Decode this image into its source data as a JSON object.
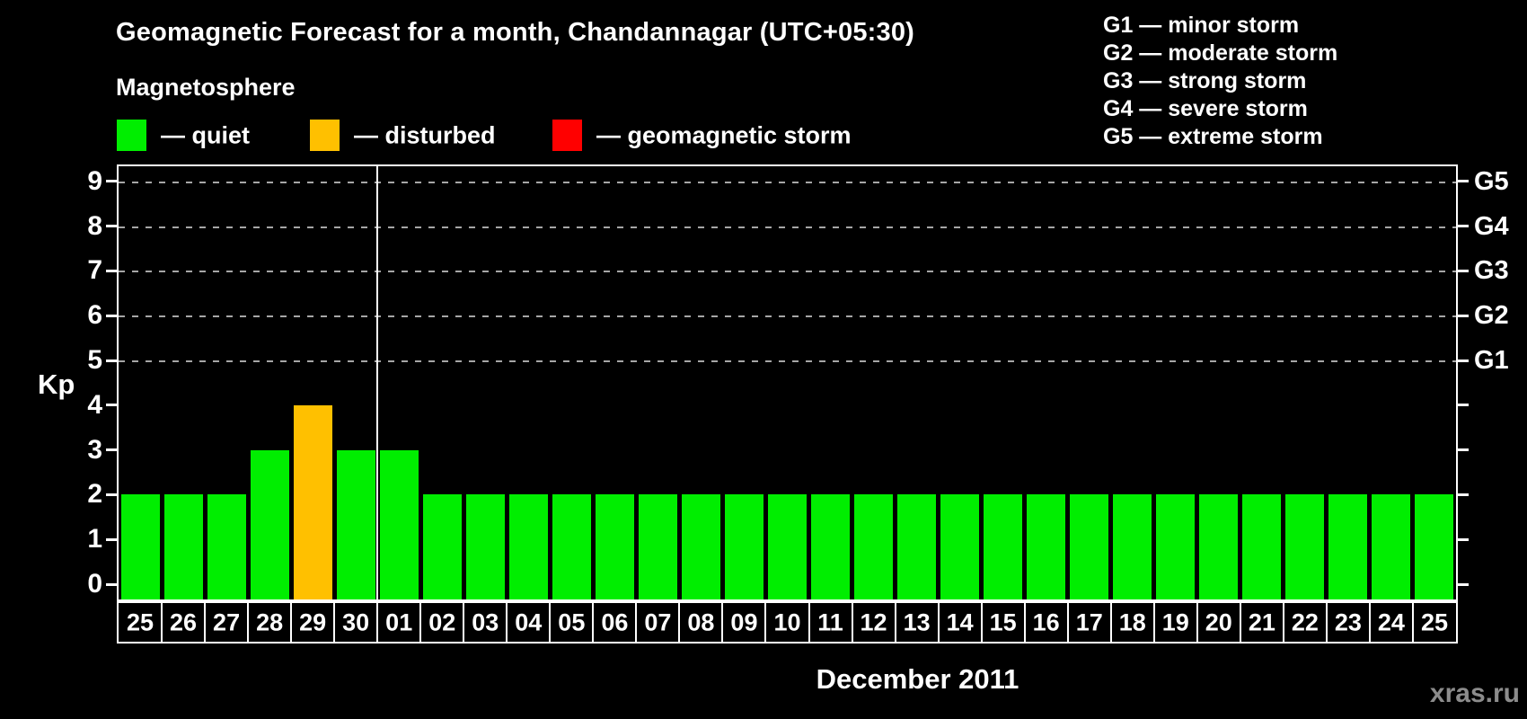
{
  "header": {
    "title": "Geomagnetic Forecast for a month, Chandannagar (UTC+05:30)",
    "subtitle": "Magnetosphere"
  },
  "legend": {
    "items": [
      {
        "key": "quiet",
        "label": "— quiet",
        "color": "#00ee00"
      },
      {
        "key": "disturbed",
        "label": "— disturbed",
        "color": "#ffc000"
      },
      {
        "key": "storm",
        "label": "— geomagnetic storm",
        "color": "#ff0000"
      }
    ]
  },
  "storm_scale_legend": {
    "lines": [
      "G1 — minor storm",
      "G2 — moderate storm",
      "G3 — strong storm",
      "G4 — severe storm",
      "G5 — extreme storm"
    ]
  },
  "watermark": "xras.ru",
  "chart_data": {
    "type": "bar",
    "title": "Geomagnetic Forecast for a month, Chandannagar (UTC+05:30)",
    "ylabel": "Kp",
    "xlabel": "December 2011",
    "ylim": [
      0,
      9
    ],
    "yticks": [
      0,
      1,
      2,
      3,
      4,
      5,
      6,
      7,
      8,
      9
    ],
    "gridlines_at": [
      5,
      6,
      7,
      8,
      9
    ],
    "grid_style": "dashed horizontal",
    "legend_position": "top-left",
    "right_axis_labels": [
      {
        "value": 5,
        "label": "G1"
      },
      {
        "value": 6,
        "label": "G2"
      },
      {
        "value": 7,
        "label": "G3"
      },
      {
        "value": 8,
        "label": "G4"
      },
      {
        "value": 9,
        "label": "G5"
      }
    ],
    "categories": [
      "25",
      "26",
      "27",
      "28",
      "29",
      "30",
      "01",
      "02",
      "03",
      "04",
      "05",
      "06",
      "07",
      "08",
      "09",
      "10",
      "11",
      "12",
      "13",
      "14",
      "15",
      "16",
      "17",
      "18",
      "19",
      "20",
      "21",
      "22",
      "23",
      "24",
      "25"
    ],
    "values": [
      2,
      2,
      2,
      3,
      4,
      3,
      3,
      2,
      2,
      2,
      2,
      2,
      2,
      2,
      2,
      2,
      2,
      2,
      2,
      2,
      2,
      2,
      2,
      2,
      2,
      2,
      2,
      2,
      2,
      2,
      2
    ],
    "statuses": [
      "quiet",
      "quiet",
      "quiet",
      "quiet",
      "disturbed",
      "quiet",
      "quiet",
      "quiet",
      "quiet",
      "quiet",
      "quiet",
      "quiet",
      "quiet",
      "quiet",
      "quiet",
      "quiet",
      "quiet",
      "quiet",
      "quiet",
      "quiet",
      "quiet",
      "quiet",
      "quiet",
      "quiet",
      "quiet",
      "quiet",
      "quiet",
      "quiet",
      "quiet",
      "quiet",
      "quiet"
    ],
    "status_colors": {
      "quiet": "#00ee00",
      "disturbed": "#ffc000",
      "storm": "#ff0000"
    },
    "month_separator_after_index": 5
  }
}
